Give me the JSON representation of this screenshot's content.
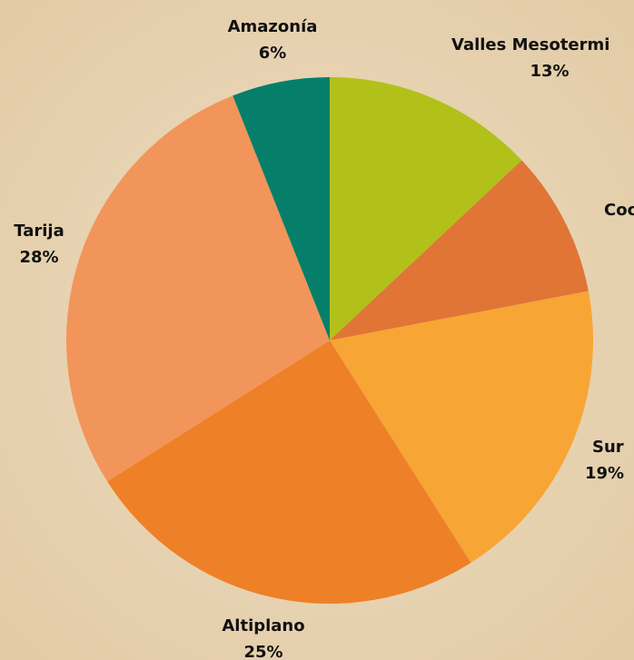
{
  "chart_data": {
    "type": "pie",
    "categories": [
      "Valles Mesotermi",
      "Coc",
      "Sur",
      "Altiplano",
      "Tarija",
      "Amazonía"
    ],
    "values": [
      13,
      9,
      19,
      25,
      28,
      6
    ],
    "value_labels": [
      "13%",
      null,
      "19%",
      "25%",
      "28%",
      "6%"
    ],
    "colors": [
      "#b2c11a",
      "#e07535",
      "#f7a535",
      "#ee8027",
      "#f2955a",
      "#057f6a"
    ]
  }
}
